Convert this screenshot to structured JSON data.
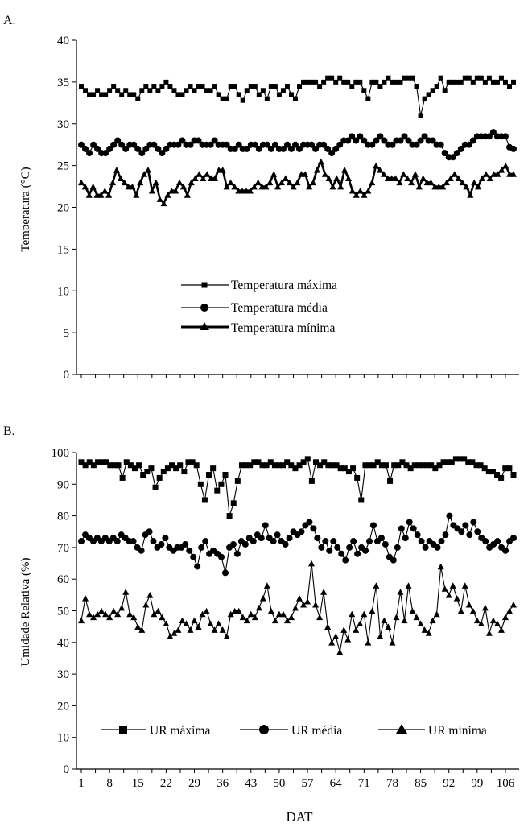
{
  "chart_data": [
    {
      "panel_label": "A.",
      "type": "line",
      "title": "",
      "xlabel": "",
      "ylabel": "Temperatura (°C)",
      "ylim": [
        0,
        40
      ],
      "yticks": [
        "0",
        "5",
        "10",
        "15",
        "20",
        "25",
        "30",
        "35",
        "40"
      ],
      "xlim": [
        1,
        108
      ],
      "legend_position": "center",
      "grid": false,
      "series": [
        {
          "name": "Temperatura máxima",
          "marker": "square",
          "values": [
            34.5,
            34,
            33.5,
            33.5,
            34,
            33.5,
            33.5,
            34,
            34.5,
            34,
            33.5,
            34,
            33.5,
            33.5,
            33,
            34,
            34.5,
            34,
            34.5,
            34,
            34.5,
            35,
            34.5,
            34,
            33.5,
            33.5,
            34,
            34.5,
            34,
            34.5,
            34.5,
            34,
            34,
            34.5,
            33.5,
            33,
            33,
            34.5,
            34.5,
            33.5,
            32.8,
            34,
            34.5,
            34.5,
            33.5,
            34,
            33,
            34.5,
            34.5,
            33.5,
            34,
            34.5,
            33.5,
            33,
            34.5,
            35,
            35,
            35,
            35,
            34.5,
            35,
            35.5,
            35.5,
            35,
            35.5,
            35,
            35,
            34.5,
            35,
            35,
            34,
            33,
            35,
            35,
            34.5,
            35,
            35.5,
            35,
            35,
            35,
            35.5,
            35.5,
            35.5,
            34.5,
            31,
            33,
            33.5,
            34,
            34.5,
            35.5,
            34,
            35,
            35,
            35,
            35,
            35.5,
            35.5,
            35,
            35.5,
            35.5,
            35,
            35.5,
            35,
            35,
            35.5,
            35,
            34.5,
            35
          ]
        },
        {
          "name": "Temperatura média",
          "marker": "circle",
          "values": [
            27.5,
            27,
            26.5,
            27.5,
            27,
            26.5,
            26.5,
            27,
            27.5,
            28,
            27.5,
            27,
            27.5,
            27.5,
            27,
            26.5,
            27,
            27.5,
            27.5,
            27,
            26.5,
            27,
            27.5,
            27.5,
            27.5,
            28,
            27.5,
            27.5,
            28,
            28,
            27.5,
            27.5,
            27.5,
            28,
            27.5,
            27.5,
            27.5,
            27,
            27,
            27.5,
            27,
            27,
            27.5,
            27.5,
            27,
            27.5,
            27.5,
            27,
            27.5,
            27,
            27,
            27.5,
            27,
            27.5,
            27,
            27.5,
            27.5,
            27.5,
            27,
            27.5,
            27.5,
            27,
            26.5,
            27,
            27.5,
            28,
            28,
            28.5,
            28,
            28.5,
            28,
            27.5,
            27.5,
            28,
            28.5,
            28,
            27.5,
            27.5,
            28,
            28,
            28.5,
            28,
            27.5,
            27.5,
            28,
            28.5,
            28,
            28,
            27.5,
            27.5,
            26.5,
            26,
            26,
            26.5,
            27,
            27.5,
            27.5,
            28,
            28.5,
            28.5,
            28.5,
            28.5,
            29,
            28.5,
            28.5,
            28.5,
            27.2,
            27
          ]
        },
        {
          "name": "Temperatura mínima",
          "marker": "triangle",
          "values": [
            23,
            22.5,
            21.5,
            22.5,
            21.5,
            21.5,
            22,
            21.5,
            23,
            24.5,
            23.5,
            23,
            22.5,
            22.5,
            21.5,
            23,
            24,
            24.5,
            22,
            23,
            21,
            20.5,
            21.5,
            22,
            22,
            23,
            22.5,
            21.5,
            23,
            23.5,
            24,
            23.5,
            24,
            23.5,
            23.5,
            24.5,
            24.5,
            22.5,
            23,
            22.5,
            22,
            22,
            22,
            22,
            22.5,
            23,
            22.5,
            22.5,
            23,
            24,
            22.5,
            23,
            23.5,
            23,
            22.5,
            23,
            24,
            24,
            22.5,
            23,
            24.5,
            25.5,
            24,
            23.5,
            22.5,
            23.5,
            22.5,
            24.5,
            23.5,
            22,
            21.5,
            22,
            21.5,
            22,
            23,
            25,
            24.5,
            24,
            23.5,
            23.5,
            23.5,
            23,
            24,
            23.5,
            23,
            24,
            22.5,
            23.5,
            23,
            23,
            22.5,
            22.5,
            22.5,
            23,
            23.5,
            24,
            23.5,
            23,
            22.5,
            21.5,
            23,
            22.5,
            23.5,
            24,
            23.5,
            24,
            24,
            24.5,
            25,
            24,
            24
          ]
        }
      ]
    },
    {
      "panel_label": "B.",
      "type": "line",
      "title": "",
      "xlabel": "DAT",
      "ylabel": "Umidade Relativa (%)",
      "ylim": [
        0,
        100
      ],
      "yticks": [
        "0",
        "10",
        "20",
        "30",
        "40",
        "50",
        "60",
        "70",
        "80",
        "90",
        "100"
      ],
      "xlim": [
        1,
        108
      ],
      "xticks": [
        1,
        8,
        15,
        22,
        29,
        36,
        43,
        50,
        57,
        64,
        71,
        78,
        85,
        92,
        99,
        106
      ],
      "legend_position": "bottom",
      "grid": false,
      "series": [
        {
          "name": "UR máxima",
          "marker": "square",
          "values": [
            97,
            96,
            97,
            96,
            97,
            97,
            97,
            96,
            96,
            96,
            92,
            97,
            96,
            95,
            96,
            93,
            94,
            95,
            89,
            92,
            94,
            95,
            96,
            95,
            96,
            94,
            97,
            97,
            96,
            90,
            85,
            93,
            95,
            88,
            90,
            93,
            80,
            84,
            91,
            96,
            96,
            96,
            97,
            97,
            96,
            96,
            97,
            96,
            96,
            96,
            97,
            96,
            95,
            96,
            97,
            98,
            91,
            97,
            96,
            97,
            96,
            96,
            96,
            95,
            95,
            94,
            95,
            92,
            85,
            96,
            96,
            96,
            97,
            96,
            96,
            91,
            96,
            96,
            97,
            96,
            95,
            96,
            96,
            96,
            96,
            96,
            95,
            96,
            97,
            97,
            97,
            98,
            98,
            98,
            97,
            97,
            96,
            96,
            95,
            94,
            94,
            93,
            92,
            95,
            95,
            93
          ]
        },
        {
          "name": "UR média",
          "marker": "circle",
          "values": [
            72,
            74,
            73,
            72,
            73,
            72,
            73,
            72,
            73,
            72,
            74,
            73,
            72,
            72,
            70,
            69,
            74,
            75,
            72,
            70,
            71,
            73,
            70,
            69,
            70,
            70,
            71,
            69,
            67,
            64,
            70,
            72,
            68,
            69,
            68,
            67,
            62,
            70,
            71,
            68,
            72,
            71,
            73,
            72,
            74,
            73,
            77,
            73,
            72,
            74,
            72,
            71,
            73,
            75,
            74,
            75,
            77,
            78,
            76,
            73,
            70,
            72,
            69,
            72,
            70,
            68,
            66,
            70,
            72,
            68,
            70,
            69,
            72,
            77,
            72,
            73,
            71,
            67,
            66,
            70,
            76,
            73,
            78,
            76,
            74,
            72,
            70,
            72,
            71,
            70,
            72,
            74,
            80,
            77,
            76,
            75,
            77,
            74,
            78,
            75,
            73,
            72,
            70,
            71,
            72,
            70,
            69,
            72,
            73
          ]
        },
        {
          "name": "UR mínima",
          "marker": "triangle",
          "values": [
            47,
            54,
            49,
            48,
            49,
            50,
            49,
            48,
            50,
            49,
            51,
            56,
            49,
            48,
            45,
            44,
            52,
            55,
            49,
            50,
            48,
            46,
            42,
            43,
            44,
            47,
            46,
            44,
            47,
            45,
            49,
            50,
            46,
            44,
            46,
            44,
            42,
            49,
            50,
            50,
            48,
            47,
            49,
            48,
            51,
            54,
            58,
            50,
            47,
            49,
            49,
            47,
            48,
            51,
            54,
            52,
            53,
            65,
            52,
            48,
            56,
            45,
            40,
            42,
            37,
            44,
            41,
            49,
            44,
            46,
            49,
            40,
            50,
            58,
            42,
            47,
            45,
            40,
            48,
            56,
            47,
            58,
            50,
            48,
            46,
            44,
            43,
            47,
            49,
            64,
            57,
            55,
            58,
            54,
            50,
            58,
            52,
            50,
            47,
            46,
            51,
            43,
            47,
            46,
            44,
            48,
            50,
            52
          ]
        }
      ]
    }
  ]
}
